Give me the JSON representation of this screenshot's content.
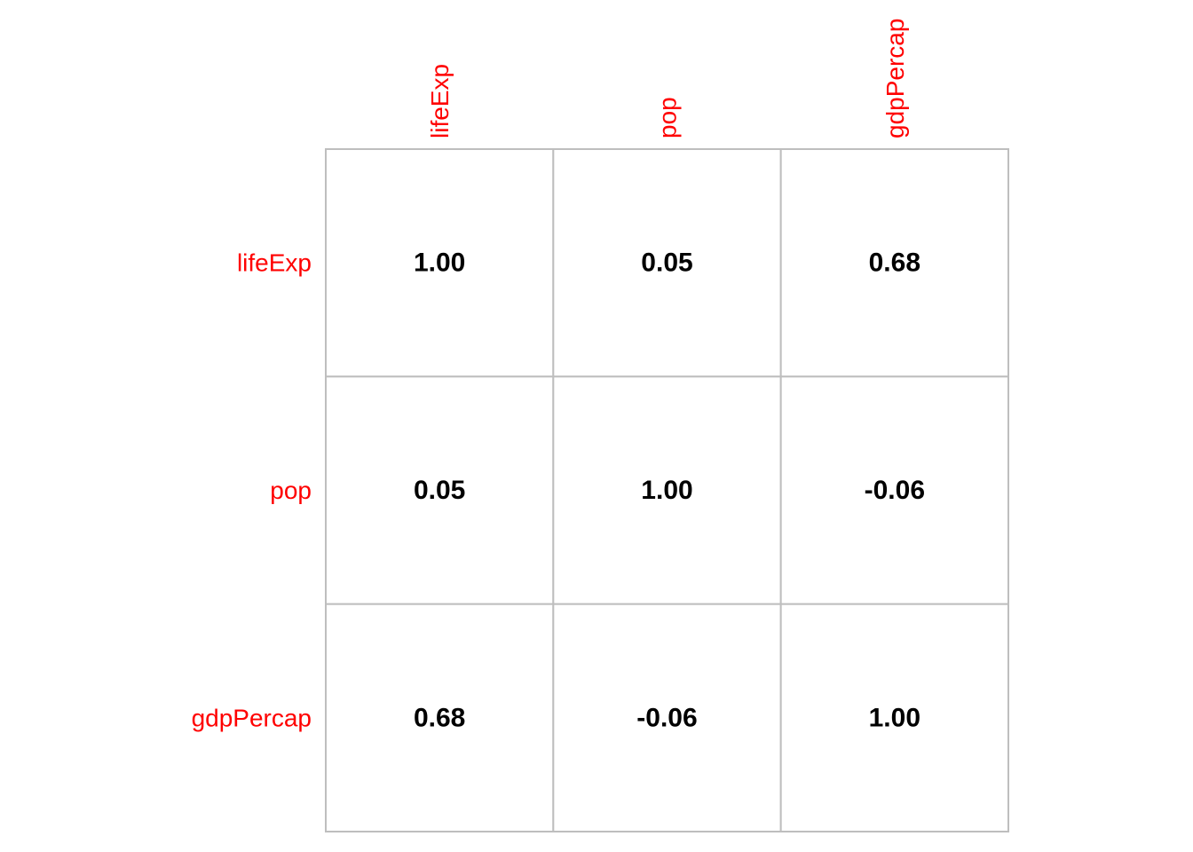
{
  "chart_data": {
    "type": "heatmap",
    "variables": [
      "lifeExp",
      "pop",
      "gdpPercap"
    ],
    "matrix": [
      [
        "1.00",
        "0.05",
        "0.68"
      ],
      [
        "0.05",
        "1.00",
        "-0.06"
      ],
      [
        "0.68",
        "-0.06",
        "1.00"
      ]
    ],
    "label_color": "#ff0000",
    "value_color": "#000000",
    "grid_color": "#bebebe",
    "cell_fill": "#ffffff"
  }
}
